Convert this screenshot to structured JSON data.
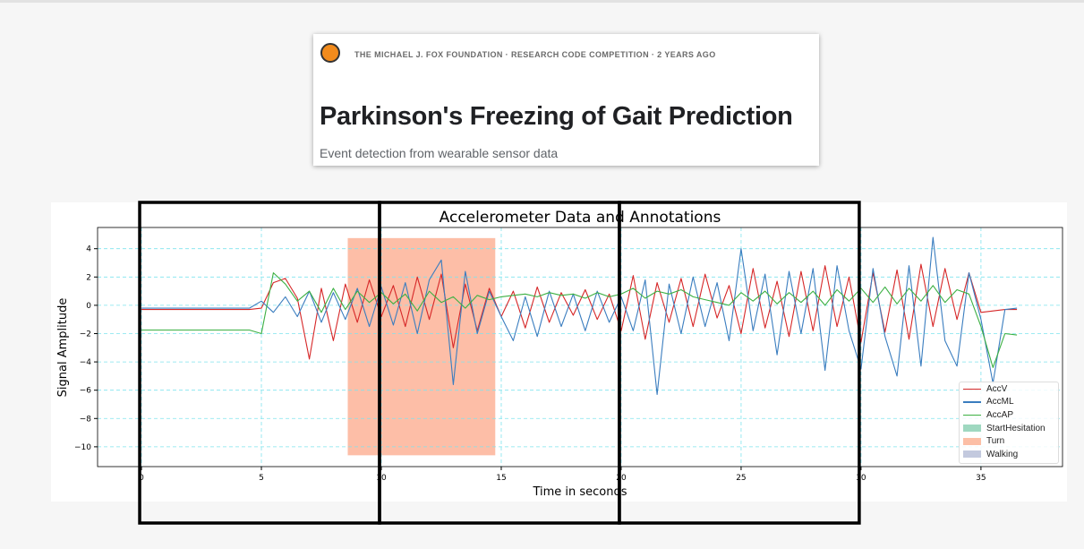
{
  "header": {
    "meta": "THE MICHAEL J. FOX FOUNDATION · RESEARCH CODE COMPETITION · 2 YEARS AGO",
    "title": "Parkinson's Freezing of Gait Prediction",
    "subtitle": "Event detection from wearable sensor data"
  },
  "chart_data": {
    "type": "line",
    "title": "Accelerometer Data and Annotations",
    "xlabel": "Time in seconds",
    "ylabel": "Signal Amplitude",
    "xlim": [
      -1.83,
      38.4
    ],
    "ylim": [
      -11.4,
      5.5
    ],
    "xticks": [
      "0",
      "5",
      "10",
      "15",
      "20",
      "25",
      "30",
      "35"
    ],
    "xtick_values": [
      0,
      5,
      10,
      15,
      20,
      25,
      30,
      35
    ],
    "yticks": [
      "4",
      "2",
      "0",
      "−2",
      "−4",
      "−6",
      "−8",
      "−10"
    ],
    "ytick_values": [
      4,
      2,
      0,
      -2,
      -4,
      -6,
      -8,
      -10
    ],
    "grid": true,
    "legend_position": "lower-right",
    "t0": 0,
    "dt": 0.5,
    "series": [
      {
        "name": "AccV",
        "color": "#d62728",
        "values": [
          -0.3,
          -0.3,
          -0.3,
          -0.3,
          -0.3,
          -0.3,
          -0.3,
          -0.3,
          -0.3,
          -0.3,
          -0.2,
          1.6,
          1.9,
          0.5,
          -3.8,
          1.2,
          -2.5,
          1.5,
          -1.2,
          1.8,
          -0.8,
          1.4,
          -1.5,
          2.0,
          -1.0,
          2.2,
          -3.0,
          1.5,
          -1.8,
          1.2,
          -0.8,
          1.0,
          -1.6,
          1.3,
          -1.2,
          0.9,
          -0.7,
          1.1,
          -1.0,
          0.8,
          -1.8,
          2.1,
          -2.4,
          1.6,
          -1.2,
          1.9,
          -1.5,
          2.2,
          -0.9,
          1.4,
          -2.0,
          2.6,
          -1.6,
          1.7,
          -2.2,
          2.4,
          -1.8,
          2.8,
          -1.5,
          2.0,
          -2.6,
          2.3,
          -1.9,
          2.5,
          -2.4,
          2.9,
          -1.5,
          2.6,
          -1.0,
          2.3,
          -0.5,
          -0.4,
          -0.3,
          -0.3
        ]
      },
      {
        "name": "AccML",
        "color": "#3a7dbf",
        "values": [
          -0.2,
          -0.2,
          -0.2,
          -0.2,
          -0.2,
          -0.2,
          -0.2,
          -0.2,
          -0.2,
          -0.2,
          0.3,
          -0.5,
          0.6,
          -0.8,
          1.0,
          -1.2,
          0.9,
          -1.0,
          1.2,
          -1.5,
          1.3,
          -1.4,
          1.6,
          -2.0,
          1.8,
          3.2,
          -5.6,
          2.4,
          -2.0,
          1.0,
          -0.8,
          -2.5,
          0.6,
          -2.2,
          1.0,
          -1.5,
          0.8,
          -1.8,
          1.0,
          -1.2,
          0.6,
          -1.8,
          1.8,
          -6.3,
          1.5,
          -2.0,
          2.0,
          -1.5,
          1.6,
          -2.5,
          4.0,
          -1.8,
          2.2,
          -3.5,
          2.4,
          -2.0,
          2.6,
          -4.6,
          2.8,
          -1.8,
          -4.5,
          2.6,
          -2.2,
          -5.0,
          2.8,
          -4.3,
          4.8,
          -2.5,
          -4.3,
          2.3,
          -1.0,
          -5.5,
          -0.3,
          -0.2
        ]
      },
      {
        "name": "AccAP",
        "color": "#3cb043",
        "values": [
          -1.75,
          -1.75,
          -1.75,
          -1.75,
          -1.75,
          -1.75,
          -1.75,
          -1.75,
          -1.75,
          -1.75,
          -2.0,
          2.3,
          1.5,
          0.3,
          1.0,
          -0.5,
          1.2,
          -0.3,
          1.0,
          0.2,
          0.9,
          0.1,
          0.8,
          -0.4,
          1.0,
          0.2,
          0.6,
          -0.2,
          0.7,
          0.4,
          0.6,
          0.7,
          0.8,
          0.6,
          0.9,
          0.7,
          0.8,
          0.5,
          0.9,
          0.6,
          0.8,
          1.2,
          0.5,
          1.0,
          0.8,
          1.1,
          0.6,
          0.4,
          0.2,
          0.0,
          0.9,
          0.3,
          1.0,
          0.1,
          0.9,
          0.2,
          1.0,
          0.0,
          1.1,
          0.3,
          1.2,
          0.2,
          1.3,
          0.1,
          1.2,
          0.3,
          1.4,
          0.2,
          1.1,
          0.8,
          -1.5,
          -4.4,
          -2.0,
          -2.1
        ]
      }
    ],
    "spans": [
      {
        "name": "Turn",
        "color": "#fcae91",
        "start": 8.6,
        "end": 14.75,
        "ymin": -10.6,
        "ymax": 4.75
      }
    ],
    "legend": [
      {
        "label": "AccV",
        "color": "#d62728",
        "kind": "line"
      },
      {
        "label": "AccML",
        "color": "#3a7dbf",
        "kind": "line"
      },
      {
        "label": "AccAP",
        "color": "#3cb043",
        "kind": "line"
      },
      {
        "label": "StartHesitation",
        "color": "#9fd8c0",
        "kind": "patch"
      },
      {
        "label": "Turn",
        "color": "#fcbfa6",
        "kind": "patch"
      },
      {
        "label": "Walking",
        "color": "#c3c9de",
        "kind": "patch"
      }
    ],
    "windows": [
      [
        0,
        10
      ],
      [
        10,
        20
      ],
      [
        20,
        30
      ]
    ]
  }
}
